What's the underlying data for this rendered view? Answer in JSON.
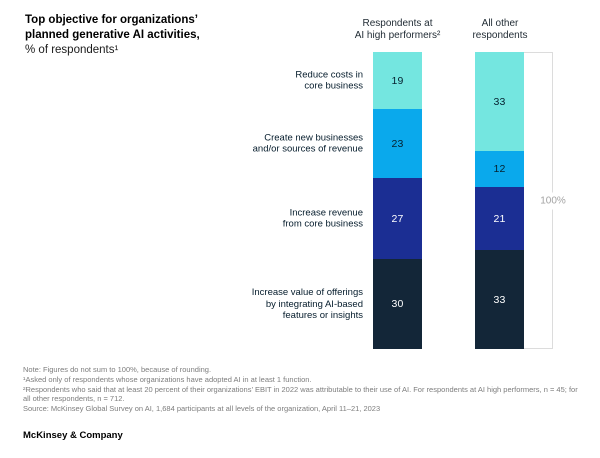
{
  "title": {
    "bold_line1": "Top objective for organizations’",
    "bold_line2": "planned generative AI activities,",
    "subtitle": "% of respondents¹"
  },
  "chart_data": {
    "type": "bar",
    "stacked": true,
    "orientation": "vertical",
    "ylim": [
      0,
      100
    ],
    "axis_max_label": "100%",
    "categories": [
      [
        "Reduce costs in",
        "core business"
      ],
      [
        "Create new businesses",
        "and/or sources of revenue"
      ],
      [
        "Increase revenue",
        "from core business"
      ],
      [
        "Increase value of offerings",
        "by integrating AI-based",
        "features or insights"
      ]
    ],
    "series": [
      {
        "name": "Respondents at AI high performers",
        "header_lines": [
          "Respondents at",
          "AI high performers²"
        ],
        "values": [
          19,
          23,
          27,
          30
        ]
      },
      {
        "name": "All other respondents",
        "header_lines": [
          "All other",
          "respondents"
        ],
        "values": [
          33,
          12,
          21,
          33
        ]
      }
    ],
    "segment_colors": [
      "#74e6e0",
      "#0aa9ec",
      "#1b2e93",
      "#132638"
    ],
    "value_text_colors": [
      "#06212f",
      "#06212f",
      "#ffffff",
      "#ffffff"
    ],
    "reference_box_border_color": "#dcdcdc"
  },
  "footnotes": [
    "Note: Figures do not sum to 100%, because of rounding.",
    "¹Asked only of respondents whose organizations have adopted AI in at least 1 function.",
    "²Respondents who said that at least 20 percent of their organizations’ EBIT in 2022 was attributable to their use of AI. For respondents at AI high performers, n = 45; for all other respondents, n = 712.",
    "Source: McKinsey Global Survey on AI, 1,684 participants at all levels of the organization, April 11–21, 2023"
  ],
  "brand": "McKinsey & Company"
}
